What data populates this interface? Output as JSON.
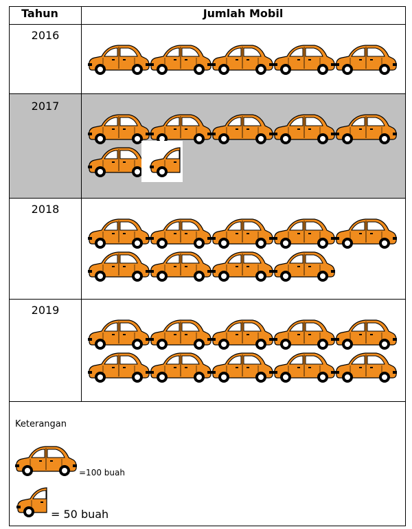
{
  "chart_data": {
    "type": "table",
    "columns": [
      "Tahun",
      "Jumlah Mobil"
    ],
    "categories": [
      "2016",
      "2017",
      "2018",
      "2019"
    ],
    "values": [
      500,
      650,
      900,
      1000
    ],
    "icons_full": [
      5,
      6,
      9,
      10
    ],
    "icons_half": [
      0,
      1,
      0,
      0
    ],
    "legend": {
      "title": "Keterangan",
      "full_label": "=100 buah",
      "full_value": 100,
      "half_label": "= 50 buah",
      "half_value": 50
    },
    "row_colors": [
      "#ffffff",
      "#c0c0c0",
      "#ffffff",
      "#ffffff"
    ]
  },
  "colors": {
    "car_body": "#f08c1e",
    "outline": "#000000",
    "highlight_row": "#c0c0c0"
  },
  "icons": {
    "car": "car-icon",
    "half_car": "half-car-icon"
  }
}
